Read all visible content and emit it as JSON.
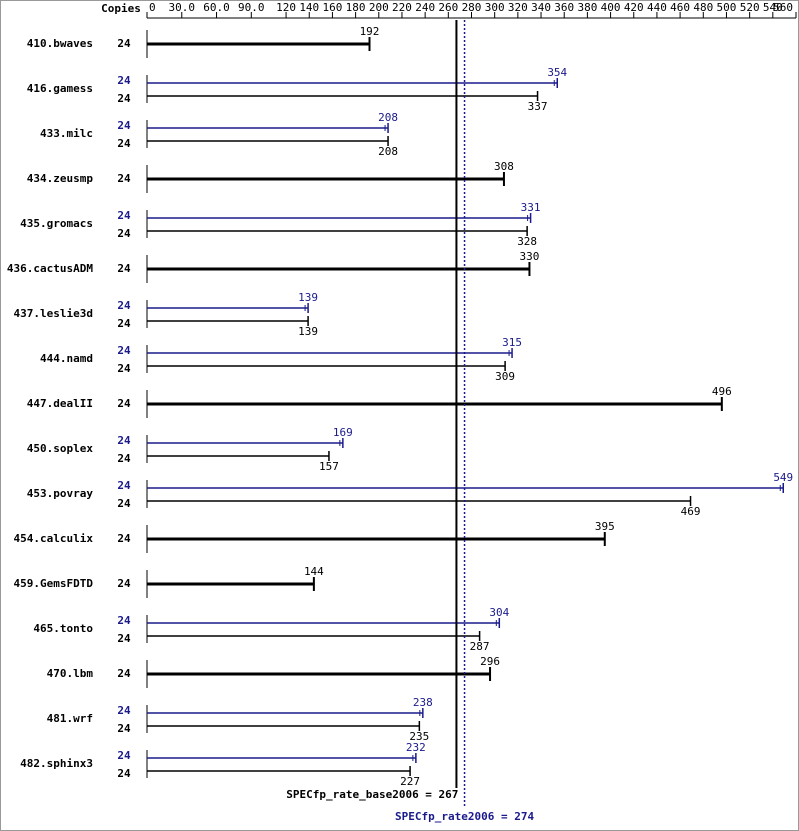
{
  "chart_data": {
    "type": "bar",
    "orientation": "horizontal",
    "copies_header": "Copies",
    "categories": [
      "410.bwaves",
      "416.gamess",
      "433.milc",
      "434.zeusmp",
      "435.gromacs",
      "436.cactusADM",
      "437.leslie3d",
      "444.namd",
      "447.dealII",
      "450.soplex",
      "453.povray",
      "454.calculix",
      "459.GemsFDTD",
      "465.tonto",
      "470.lbm",
      "481.wrf",
      "482.sphinx3"
    ],
    "series": [
      {
        "color": "#000000",
        "values": [
          192,
          337,
          208,
          308,
          328,
          330,
          139,
          309,
          496,
          157,
          469,
          395,
          144,
          287,
          296,
          235,
          227
        ],
        "copies": [
          24,
          24,
          24,
          24,
          24,
          24,
          24,
          24,
          24,
          24,
          24,
          24,
          24,
          24,
          24,
          24,
          24
        ]
      },
      {
        "color": "#1a1a8c",
        "values": [
          null,
          354,
          208,
          null,
          331,
          null,
          139,
          315,
          null,
          169,
          549,
          null,
          null,
          304,
          null,
          238,
          232
        ],
        "copies": [
          null,
          24,
          24,
          null,
          24,
          null,
          24,
          24,
          null,
          24,
          24,
          null,
          null,
          24,
          null,
          24,
          24
        ]
      }
    ],
    "xlim": [
      0,
      560
    ],
    "xticks": [
      0,
      {
        "value": 30,
        "label": "30.0"
      },
      {
        "value": 60,
        "label": "60.0"
      },
      {
        "value": 90,
        "label": "90.0"
      },
      120,
      140,
      160,
      180,
      200,
      220,
      240,
      260,
      280,
      300,
      320,
      340,
      360,
      380,
      400,
      420,
      440,
      460,
      480,
      500,
      520,
      540,
      560
    ],
    "reference_lines": [
      {
        "value": 267,
        "label": "SPECfp_rate_base2006 = 267",
        "color": "#000000",
        "style": "solid"
      },
      {
        "value": 274,
        "label": "SPECfp_rate2006 = 274",
        "color": "#1a1a8c",
        "style": "dotted"
      }
    ]
  }
}
